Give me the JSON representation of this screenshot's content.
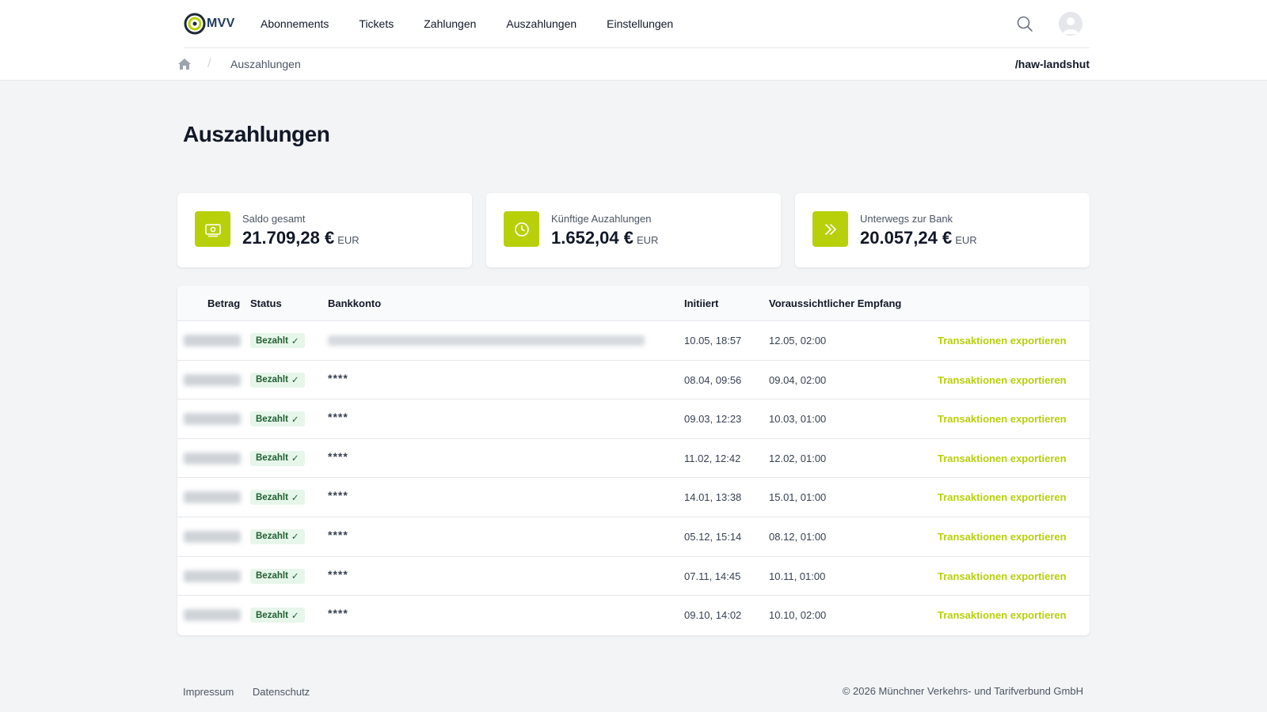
{
  "colors": {
    "accent": "#b8d00a",
    "badge_bg": "#e7f6ea",
    "badge_text": "#1f5f31"
  },
  "header": {
    "logo_text": "MVV",
    "nav": [
      "Abonnements",
      "Tickets",
      "Zahlungen",
      "Auszahlungen",
      "Einstellungen"
    ],
    "search_icon": "search-icon",
    "avatar_icon": "user-avatar-icon"
  },
  "breadcrumb": {
    "home_icon": "home-icon",
    "separator": "/",
    "current": "Auszahlungen",
    "org": "/haw-landshut"
  },
  "page": {
    "title": "Auszahlungen"
  },
  "cards": [
    {
      "icon": "banknote-icon",
      "label": "Saldo gesamt",
      "value": "21.709,28 €",
      "currency": "EUR"
    },
    {
      "icon": "clock-icon",
      "label": "Künftige Auzahlungen",
      "value": "1.652,04 €",
      "currency": "EUR"
    },
    {
      "icon": "double-chevron-right-icon",
      "label": "Unterwegs zur Bank",
      "value": "20.057,24 €",
      "currency": "EUR"
    }
  ],
  "table": {
    "headers": {
      "amount": "Betrag",
      "status": "Status",
      "account": "Bankkonto",
      "initiated": "Initiiert",
      "received": "Voraussichtlicher Empfang"
    },
    "rows": [
      {
        "status": "Bezahlt",
        "account": "",
        "account_blurred": true,
        "initiated": "10.05, 18:57",
        "received": "12.05, 02:00",
        "action": "Transaktionen exportieren"
      },
      {
        "status": "Bezahlt",
        "account": "****",
        "initiated": "08.04, 09:56",
        "received": "09.04, 02:00",
        "action": "Transaktionen exportieren"
      },
      {
        "status": "Bezahlt",
        "account": "****",
        "initiated": "09.03, 12:23",
        "received": "10.03, 01:00",
        "action": "Transaktionen exportieren"
      },
      {
        "status": "Bezahlt",
        "account": "****",
        "initiated": "11.02, 12:42",
        "received": "12.02, 01:00",
        "action": "Transaktionen exportieren"
      },
      {
        "status": "Bezahlt",
        "account": "****",
        "initiated": "14.01, 13:38",
        "received": "15.01, 01:00",
        "action": "Transaktionen exportieren"
      },
      {
        "status": "Bezahlt",
        "account": "****",
        "initiated": "05.12, 15:14",
        "received": "08.12, 01:00",
        "action": "Transaktionen exportieren"
      },
      {
        "status": "Bezahlt",
        "account": "****",
        "initiated": "07.11, 14:45",
        "received": "10.11, 01:00",
        "action": "Transaktionen exportieren"
      },
      {
        "status": "Bezahlt",
        "account": "****",
        "initiated": "09.10, 14:02",
        "received": "10.10, 02:00",
        "action": "Transaktionen exportieren"
      }
    ]
  },
  "footer": {
    "links": [
      "Impressum",
      "Datenschutz"
    ],
    "copyright": "© 2026 Münchner Verkehrs- und Tarifverbund GmbH"
  }
}
